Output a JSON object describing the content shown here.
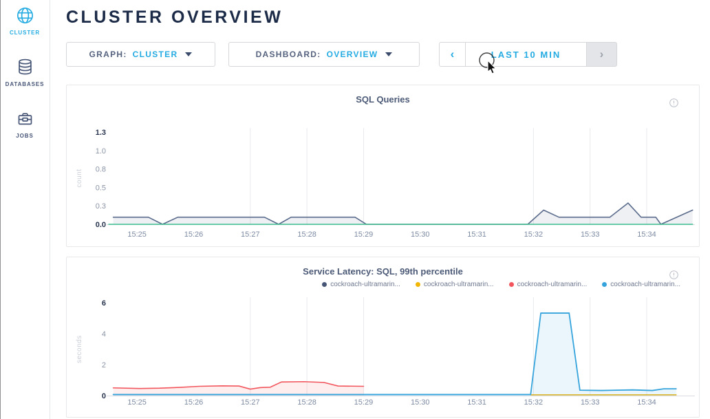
{
  "header": {
    "title": "CLUSTER OVERVIEW"
  },
  "sidebar": {
    "items": [
      {
        "label": "CLUSTER",
        "icon": "globe-icon",
        "active": true
      },
      {
        "label": "DATABASES",
        "icon": "database-icon",
        "active": false
      },
      {
        "label": "JOBS",
        "icon": "briefcase-icon",
        "active": false
      }
    ]
  },
  "toolbar": {
    "graph": {
      "label": "GRAPH:",
      "value": "CLUSTER",
      "icon": "chevron-down-icon"
    },
    "dashboard": {
      "label": "DASHBOARD:",
      "value": "OVERVIEW",
      "icon": "chevron-down-icon"
    },
    "time_range": {
      "prev_glyph": "‹",
      "label": "LAST 10 MIN",
      "next_glyph": "›",
      "next_disabled": true
    }
  },
  "colors": {
    "accent_blue": "#24ABE2",
    "navy": "#1B2A47",
    "slate_label": "#55627E",
    "series_slate": "#5A6B8C",
    "series_green": "#3EBF8F",
    "series_red": "#F2555C",
    "series_yellow": "#EBB000",
    "series_blue": "#35A3DC"
  },
  "chart_data": [
    {
      "type": "area",
      "title": "SQL Queries",
      "ylabel": "count",
      "ylim": [
        0,
        1.3
      ],
      "xlim_minutes": [
        24.5,
        34.85
      ],
      "grid": "vertical-partial",
      "y_tick_labels": [
        "0.0",
        "0.3",
        "0.5",
        "0.8",
        "1.0",
        "1.3"
      ],
      "x_ticks": [
        {
          "label": "15:25",
          "minute": 25
        },
        {
          "label": "15:26",
          "minute": 26
        },
        {
          "label": "15:27",
          "minute": 27
        },
        {
          "label": "15:28",
          "minute": 28
        },
        {
          "label": "15:29",
          "minute": 29
        },
        {
          "label": "15:30",
          "minute": 30
        },
        {
          "label": "15:31",
          "minute": 31
        },
        {
          "label": "15:32",
          "minute": 32
        },
        {
          "label": "15:33",
          "minute": 33
        },
        {
          "label": "15:34",
          "minute": 34
        }
      ],
      "grid_x_minutes": [
        27,
        28,
        29,
        32,
        33,
        34
      ],
      "series": [
        {
          "name": "sql-queries-count",
          "color": "#5A6B8C",
          "fill": "rgba(90,107,140,0.10)",
          "width": 1.6,
          "points": [
            [
              24.58,
              0.1
            ],
            [
              25.2,
              0.1
            ],
            [
              25.45,
              0
            ],
            [
              25.72,
              0.1
            ],
            [
              27.25,
              0.1
            ],
            [
              27.5,
              0
            ],
            [
              27.72,
              0.1
            ],
            [
              28.85,
              0.1
            ],
            [
              29.05,
              0
            ],
            [
              31.9,
              0
            ],
            [
              32.18,
              0.2
            ],
            [
              32.45,
              0.1
            ],
            [
              33.35,
              0.1
            ],
            [
              33.67,
              0.3
            ],
            [
              33.9,
              0.1
            ],
            [
              34.16,
              0.1
            ],
            [
              34.25,
              0
            ],
            [
              34.81,
              0.2
            ]
          ]
        },
        {
          "name": "baseline-zero",
          "color": "#3EBF8F",
          "width": 1.5,
          "points": [
            [
              24.5,
              0
            ],
            [
              34.81,
              0
            ]
          ]
        }
      ]
    },
    {
      "type": "area",
      "title": "Service Latency: SQL, 99th percentile",
      "ylabel": "seconds",
      "ylim": [
        0,
        6
      ],
      "xlim_minutes": [
        24.5,
        34.85
      ],
      "grid": "vertical-partial",
      "y_tick_labels": [
        "0",
        "2",
        "4",
        "6"
      ],
      "x_ticks": [
        {
          "label": "15:25",
          "minute": 25
        },
        {
          "label": "15:26",
          "minute": 26
        },
        {
          "label": "15:27",
          "minute": 27
        },
        {
          "label": "15:28",
          "minute": 28
        },
        {
          "label": "15:29",
          "minute": 29
        },
        {
          "label": "15:30",
          "minute": 30
        },
        {
          "label": "15:31",
          "minute": 31
        },
        {
          "label": "15:32",
          "minute": 32
        },
        {
          "label": "15:33",
          "minute": 33
        },
        {
          "label": "15:34",
          "minute": 34
        }
      ],
      "grid_x_minutes": [
        27,
        28,
        29,
        32,
        33,
        34
      ],
      "legend": [
        {
          "label": "cockroach-ultramarin...",
          "color": "#475677"
        },
        {
          "label": "cockroach-ultramarin...",
          "color": "#F2B704"
        },
        {
          "label": "cockroach-ultramarin...",
          "color": "#F2555C"
        },
        {
          "label": "cockroach-ultramarin...",
          "color": "#35A3DC"
        }
      ],
      "series": [
        {
          "name": "latency-node-red",
          "color": "#F2555C",
          "fill": "rgba(242,85,92,0.10)",
          "width": 1.6,
          "points": [
            [
              24.58,
              0.5
            ],
            [
              25.05,
              0.46
            ],
            [
              25.4,
              0.48
            ],
            [
              25.75,
              0.53
            ],
            [
              26.1,
              0.6
            ],
            [
              26.5,
              0.63
            ],
            [
              26.8,
              0.62
            ],
            [
              27.0,
              0.42
            ],
            [
              27.18,
              0.52
            ],
            [
              27.35,
              0.54
            ],
            [
              27.55,
              0.88
            ],
            [
              27.95,
              0.9
            ],
            [
              28.3,
              0.85
            ],
            [
              28.55,
              0.62
            ],
            [
              29.0,
              0.6
            ]
          ]
        },
        {
          "name": "latency-node-yellow",
          "color": "#EBB000",
          "width": 1.5,
          "points": [
            [
              31.95,
              0.05
            ],
            [
              34.52,
              0.05
            ]
          ]
        },
        {
          "name": "latency-node-blue",
          "color": "#35A3DC",
          "fill": "rgba(53,163,220,0.10)",
          "width": 1.8,
          "points": [
            [
              24.58,
              0.07
            ],
            [
              31.95,
              0.07
            ],
            [
              32.13,
              5.33
            ],
            [
              32.63,
              5.33
            ],
            [
              32.82,
              0.35
            ],
            [
              33.2,
              0.33
            ],
            [
              33.75,
              0.37
            ],
            [
              34.1,
              0.33
            ],
            [
              34.3,
              0.44
            ],
            [
              34.52,
              0.44
            ]
          ]
        }
      ]
    }
  ]
}
